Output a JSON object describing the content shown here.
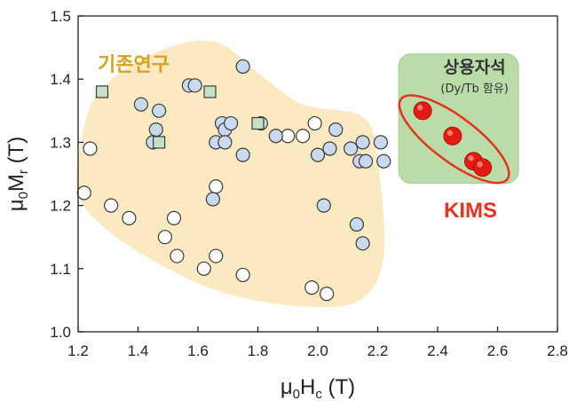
{
  "chart_data": {
    "type": "scatter",
    "xlabel": "μ0Hc (T)",
    "ylabel": "μ0Mr (T)",
    "xlim": [
      1.2,
      2.8
    ],
    "ylim": [
      1.0,
      1.5
    ],
    "x_ticks": [
      "1.2",
      "1.4",
      "1.6",
      "1.8",
      "2.0",
      "2.2",
      "2.4",
      "2.6",
      "2.8"
    ],
    "y_ticks": [
      "1.0",
      "1.1",
      "1.2",
      "1.3",
      "1.4",
      "1.5"
    ],
    "annotations": {
      "existing_research": "기존연구",
      "commercial_magnets": "상용자석",
      "commercial_magnets_sub": "(Dy/Tb 함유)",
      "kims": "KIMS"
    },
    "colors": {
      "white_marker": "#ffffff",
      "blue_marker": "#c9d9ee",
      "green_marker": "#c4e2c2",
      "red_marker": "#e51b12",
      "existing_region": "#fbe9c1",
      "commercial_region": "#b9dca8",
      "kims_ellipse": "#e8321f"
    },
    "series": [
      {
        "marker": "circle-white",
        "points": [
          [
            1.22,
            1.22
          ],
          [
            1.24,
            1.29
          ],
          [
            1.31,
            1.2
          ],
          [
            1.37,
            1.18
          ],
          [
            1.49,
            1.15
          ],
          [
            1.53,
            1.12
          ],
          [
            1.52,
            1.18
          ],
          [
            1.62,
            1.1
          ],
          [
            1.66,
            1.12
          ],
          [
            1.66,
            1.23
          ],
          [
            1.75,
            1.09
          ],
          [
            1.9,
            1.31
          ],
          [
            1.95,
            1.31
          ],
          [
            1.99,
            1.33
          ],
          [
            1.98,
            1.07
          ],
          [
            2.03,
            1.06
          ]
        ]
      },
      {
        "marker": "circle-blue",
        "points": [
          [
            1.41,
            1.36
          ],
          [
            1.47,
            1.35
          ],
          [
            1.46,
            1.32
          ],
          [
            1.45,
            1.3
          ],
          [
            1.57,
            1.39
          ],
          [
            1.59,
            1.39
          ],
          [
            1.66,
            1.3
          ],
          [
            1.68,
            1.33
          ],
          [
            1.69,
            1.32
          ],
          [
            1.69,
            1.3
          ],
          [
            1.71,
            1.33
          ],
          [
            1.75,
            1.42
          ],
          [
            1.75,
            1.28
          ],
          [
            1.81,
            1.33
          ],
          [
            1.86,
            1.31
          ],
          [
            2.0,
            1.28
          ],
          [
            2.04,
            1.29
          ],
          [
            2.06,
            1.32
          ],
          [
            2.02,
            1.2
          ],
          [
            2.11,
            1.29
          ],
          [
            2.14,
            1.27
          ],
          [
            2.15,
            1.3
          ],
          [
            2.16,
            1.27
          ],
          [
            2.13,
            1.17
          ],
          [
            2.15,
            1.14
          ],
          [
            2.21,
            1.3
          ],
          [
            2.22,
            1.27
          ],
          [
            1.65,
            1.21
          ]
        ]
      },
      {
        "marker": "square-green",
        "points": [
          [
            1.28,
            1.38
          ],
          [
            1.47,
            1.3
          ],
          [
            1.64,
            1.38
          ],
          [
            1.8,
            1.33
          ]
        ]
      },
      {
        "marker": "circle-red",
        "points": [
          [
            2.35,
            1.35
          ],
          [
            2.45,
            1.31
          ],
          [
            2.52,
            1.27
          ],
          [
            2.55,
            1.26
          ]
        ]
      }
    ],
    "legend": "none",
    "grid": false
  }
}
